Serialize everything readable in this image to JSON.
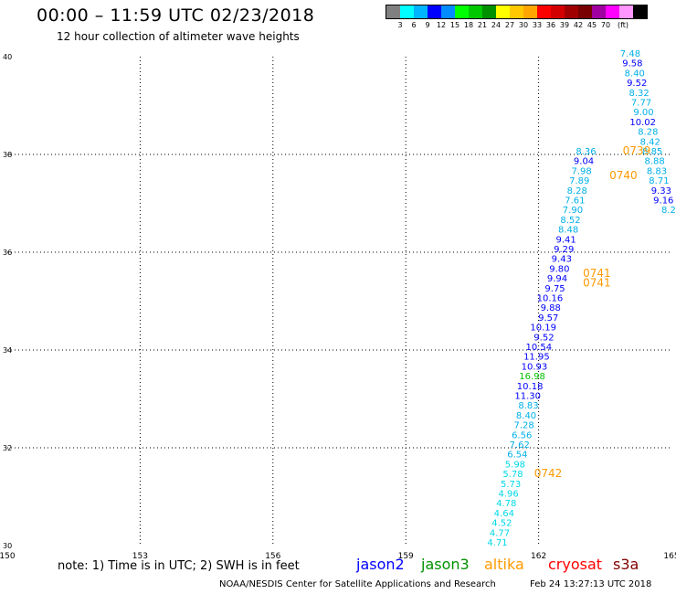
{
  "title": "00:00 – 11:59 UTC 02/23/2018",
  "subtitle": "12 hour collection of altimeter wave heights",
  "scale": {
    "colors": [
      "#808080",
      "#00ffff",
      "#00b4ff",
      "#0000ff",
      "#008cff",
      "#00ff00",
      "#00c800",
      "#009000",
      "#ffff00",
      "#ffc800",
      "#ffa500",
      "#ff0000",
      "#d20000",
      "#a00000",
      "#780000",
      "#a000a0",
      "#ff00ff",
      "#ff96ff",
      "#000000"
    ],
    "labels": [
      "3",
      "6",
      "9",
      "12",
      "15",
      "18",
      "21",
      "24",
      "27",
      "30",
      "33",
      "36",
      "39",
      "42",
      "45",
      "70"
    ],
    "unit": "(ft)"
  },
  "chart_data": {
    "type": "scatter",
    "xlim": [
      150,
      165
    ],
    "ylim": [
      30,
      40
    ],
    "xticks": [
      "150",
      "153",
      "156",
      "159",
      "162",
      "165"
    ],
    "yticks": [
      "30",
      "32",
      "34",
      "36",
      "38",
      "40"
    ],
    "grid": true,
    "series": [
      {
        "name": "track_a",
        "points": [
          {
            "x": 161.3,
            "y": 30.0,
            "v": "4.71",
            "c": "#00d8e8"
          },
          {
            "x": 161.35,
            "y": 30.2,
            "v": "4.77",
            "c": "#00d8e8"
          },
          {
            "x": 161.4,
            "y": 30.4,
            "v": "4.52",
            "c": "#00d8e8"
          },
          {
            "x": 161.45,
            "y": 30.6,
            "v": "4.64",
            "c": "#00d8e8"
          },
          {
            "x": 161.5,
            "y": 30.8,
            "v": "4.78",
            "c": "#00d8e8"
          },
          {
            "x": 161.55,
            "y": 31.0,
            "v": "4.96",
            "c": "#00d8e8"
          },
          {
            "x": 161.6,
            "y": 31.2,
            "v": "5.73",
            "c": "#00d8e8"
          },
          {
            "x": 161.65,
            "y": 31.4,
            "v": "5.78",
            "c": "#00d8e8"
          },
          {
            "x": 161.7,
            "y": 31.6,
            "v": "5.98",
            "c": "#00d8e8"
          },
          {
            "x": 161.75,
            "y": 31.8,
            "v": "6.54",
            "c": "#00b0e8"
          },
          {
            "x": 161.8,
            "y": 32.0,
            "v": "7.62",
            "c": "#00b0e8"
          },
          {
            "x": 161.85,
            "y": 32.2,
            "v": "6.56",
            "c": "#00b0e8"
          },
          {
            "x": 161.9,
            "y": 32.4,
            "v": "7.28",
            "c": "#00b0e8"
          },
          {
            "x": 161.95,
            "y": 32.6,
            "v": "8.40",
            "c": "#00b0e8"
          },
          {
            "x": 162.0,
            "y": 32.8,
            "v": "8.83",
            "c": "#00b0e8"
          },
          {
            "x": 162.05,
            "y": 33.0,
            "v": "11.30",
            "c": "#0000ff"
          },
          {
            "x": 162.1,
            "y": 33.2,
            "v": "10.18",
            "c": "#0000ff"
          },
          {
            "x": 162.15,
            "y": 33.4,
            "v": "16.98",
            "c": "#00c000"
          },
          {
            "x": 162.2,
            "y": 33.6,
            "v": "10.93",
            "c": "#0000ff"
          },
          {
            "x": 162.25,
            "y": 33.8,
            "v": "11.95",
            "c": "#0000ff"
          },
          {
            "x": 162.3,
            "y": 34.0,
            "v": "10.54",
            "c": "#0000ff"
          },
          {
            "x": 162.35,
            "y": 34.2,
            "v": "9.52",
            "c": "#0000ff"
          },
          {
            "x": 162.4,
            "y": 34.4,
            "v": "10.19",
            "c": "#0000ff"
          },
          {
            "x": 162.45,
            "y": 34.6,
            "v": "9.57",
            "c": "#0000ff"
          },
          {
            "x": 162.5,
            "y": 34.8,
            "v": "9.88",
            "c": "#0000ff"
          },
          {
            "x": 162.55,
            "y": 35.0,
            "v": "10.16",
            "c": "#0000ff"
          },
          {
            "x": 162.6,
            "y": 35.2,
            "v": "9.75",
            "c": "#0000ff"
          },
          {
            "x": 162.65,
            "y": 35.4,
            "v": "9.94",
            "c": "#0000ff"
          },
          {
            "x": 162.7,
            "y": 35.6,
            "v": "9.80",
            "c": "#0000ff"
          },
          {
            "x": 162.75,
            "y": 35.8,
            "v": "9.43",
            "c": "#0000ff"
          },
          {
            "x": 162.8,
            "y": 36.0,
            "v": "9.29",
            "c": "#0000ff"
          },
          {
            "x": 162.85,
            "y": 36.2,
            "v": "9.41",
            "c": "#0000ff"
          },
          {
            "x": 162.9,
            "y": 36.4,
            "v": "8.48",
            "c": "#00b0e8"
          },
          {
            "x": 162.95,
            "y": 36.6,
            "v": "8.52",
            "c": "#00b0e8"
          },
          {
            "x": 163.0,
            "y": 36.8,
            "v": "7.90",
            "c": "#00b0e8"
          },
          {
            "x": 163.05,
            "y": 37.0,
            "v": "7.61",
            "c": "#00b0e8"
          },
          {
            "x": 163.1,
            "y": 37.2,
            "v": "8.28",
            "c": "#00b0e8"
          },
          {
            "x": 163.15,
            "y": 37.4,
            "v": "7.89",
            "c": "#00b0e8"
          },
          {
            "x": 163.2,
            "y": 37.6,
            "v": "7.98",
            "c": "#00b0e8"
          },
          {
            "x": 163.25,
            "y": 37.8,
            "v": "9.04",
            "c": "#0000ff"
          },
          {
            "x": 163.3,
            "y": 38.0,
            "v": "8.36",
            "c": "#00b0e8"
          }
        ]
      },
      {
        "name": "track_b",
        "points": [
          {
            "x": 164.3,
            "y": 40.0,
            "v": "7.48",
            "c": "#00b0e8"
          },
          {
            "x": 164.35,
            "y": 39.8,
            "v": "9.58",
            "c": "#0000ff"
          },
          {
            "x": 164.4,
            "y": 39.6,
            "v": "8.40",
            "c": "#00b0e8"
          },
          {
            "x": 164.45,
            "y": 39.4,
            "v": "9.52",
            "c": "#0000ff"
          },
          {
            "x": 164.5,
            "y": 39.2,
            "v": "8.32",
            "c": "#00b0e8"
          },
          {
            "x": 164.55,
            "y": 39.0,
            "v": "7.77",
            "c": "#00b0e8"
          },
          {
            "x": 164.6,
            "y": 38.8,
            "v": "9.00",
            "c": "#00b0e8"
          },
          {
            "x": 164.65,
            "y": 38.6,
            "v": "10.02",
            "c": "#0000ff"
          },
          {
            "x": 164.7,
            "y": 38.4,
            "v": "8.28",
            "c": "#00b0e8"
          },
          {
            "x": 164.75,
            "y": 38.2,
            "v": "8.42",
            "c": "#00b0e8"
          },
          {
            "x": 164.8,
            "y": 38.0,
            "v": "8.85",
            "c": "#00b0e8"
          },
          {
            "x": 164.85,
            "y": 37.8,
            "v": "8.88",
            "c": "#00b0e8"
          },
          {
            "x": 164.9,
            "y": 37.6,
            "v": "8.83",
            "c": "#00b0e8"
          },
          {
            "x": 164.95,
            "y": 37.4,
            "v": "8.71",
            "c": "#00b0e8"
          },
          {
            "x": 165.0,
            "y": 37.2,
            "v": "9.33",
            "c": "#0000ff"
          },
          {
            "x": 165.05,
            "y": 37.0,
            "v": "9.16",
            "c": "#0000ff"
          },
          {
            "x": 165.1,
            "y": 36.8,
            "v": "8.2",
            "c": "#00b0e8"
          }
        ]
      }
    ],
    "time_labels": [
      {
        "x": 163.9,
        "y": 38.0,
        "t": "0739"
      },
      {
        "x": 163.6,
        "y": 37.5,
        "t": "0740"
      },
      {
        "x": 163.0,
        "y": 35.5,
        "t": "0741"
      },
      {
        "x": 163.0,
        "y": 35.3,
        "t": "0741"
      },
      {
        "x": 161.9,
        "y": 31.4,
        "t": "0742"
      }
    ]
  },
  "notes": {
    "text": "note: 1) Time is in UTC; 2) SWH is in feet",
    "legend": [
      {
        "label": "jason2",
        "color": "#0000ff"
      },
      {
        "label": "jason3",
        "color": "#009000"
      },
      {
        "label": "altika",
        "color": "#ff9900"
      },
      {
        "label": "cryosat",
        "color": "#ff0000"
      },
      {
        "label": "s3a",
        "color": "#800000"
      }
    ]
  },
  "footer": {
    "org": "NOAA/NESDIS Center for Satellite Applications and Research",
    "timestamp": "Feb 24 13:27:13 UTC 2018"
  }
}
